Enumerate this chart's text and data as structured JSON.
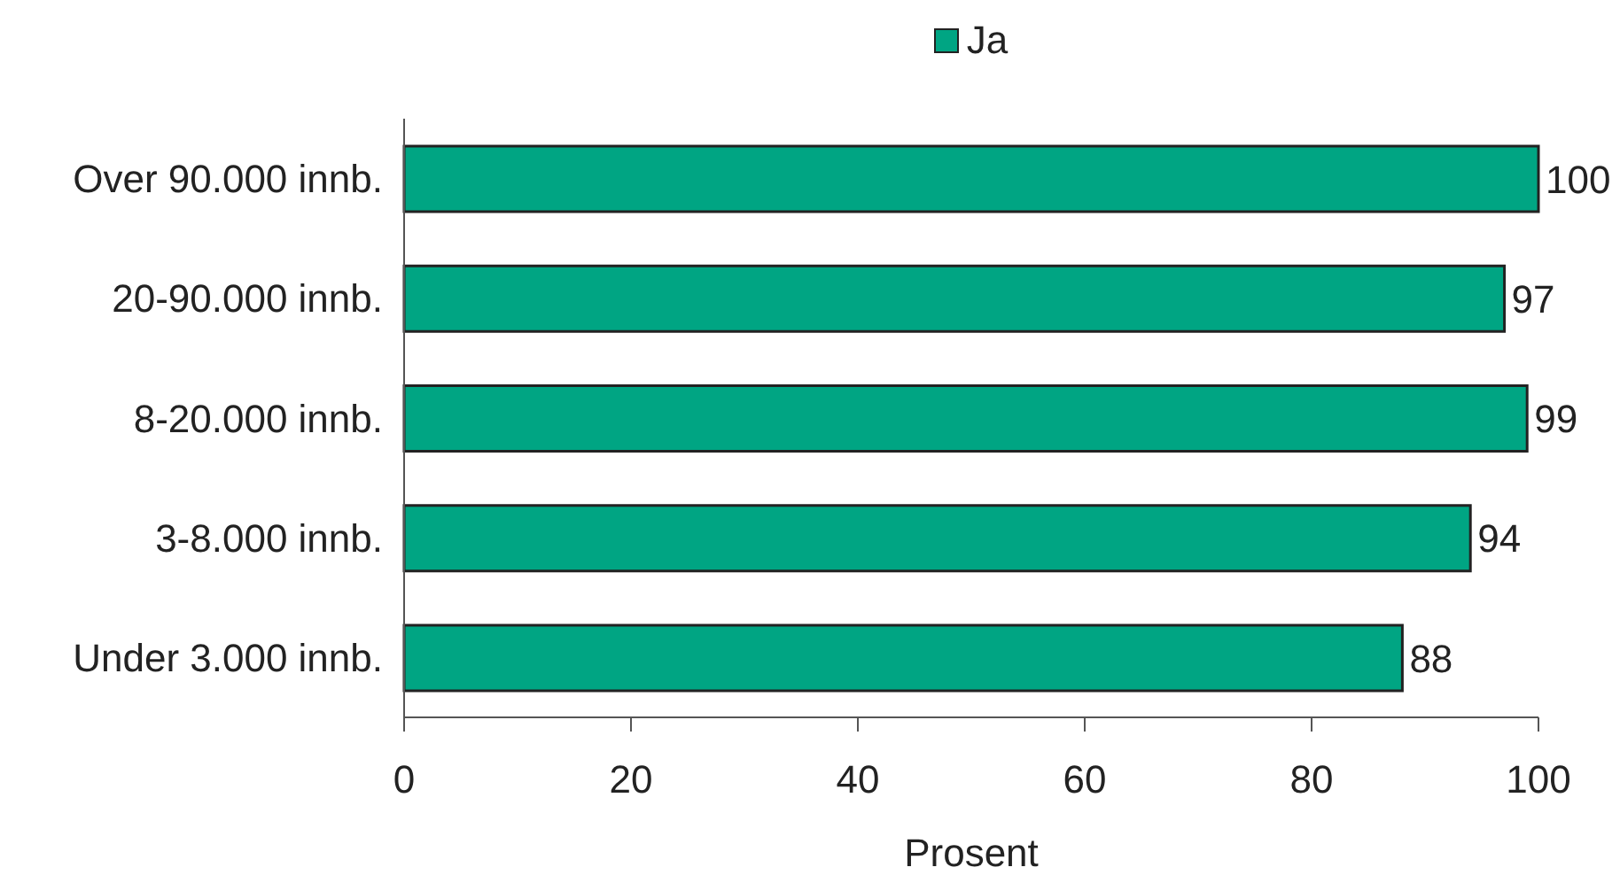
{
  "chart_data": {
    "type": "bar",
    "orientation": "horizontal",
    "categories": [
      "Over 90.000 innb.",
      "20-90.000 innb.",
      "8-20.000 innb.",
      "3-8.000 innb.",
      "Under 3.000 innb."
    ],
    "series": [
      {
        "name": "Ja",
        "color": "#00a583",
        "values": [
          100,
          97,
          99,
          94,
          88
        ]
      }
    ],
    "xlabel": "Prosent",
    "xlim": [
      0,
      100
    ],
    "xticks": [
      0,
      20,
      40,
      60,
      80,
      100
    ],
    "legend": "top",
    "data_labels": true
  }
}
